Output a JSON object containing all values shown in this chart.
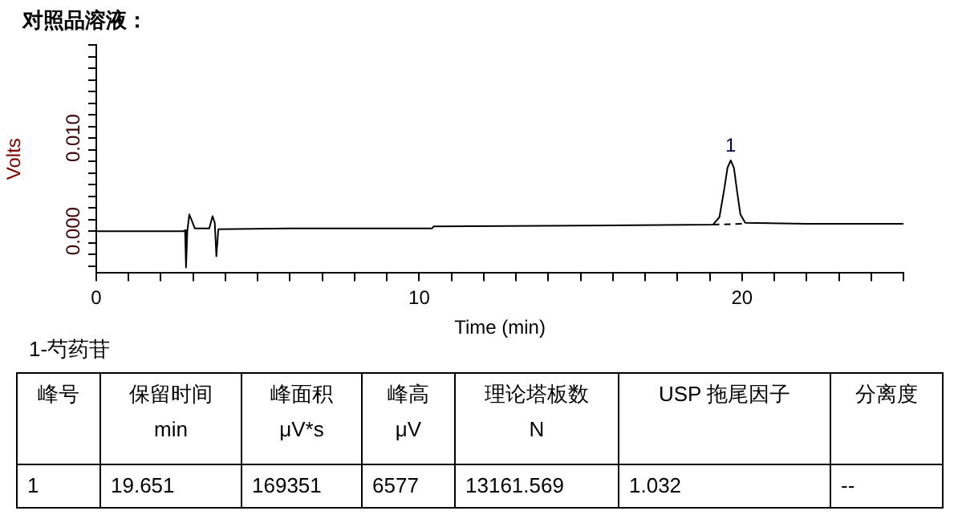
{
  "chart_data": {
    "type": "line",
    "title": "对照品溶液：",
    "xlabel": "Time (min)",
    "ylabel": "Volts",
    "xlim": [
      0,
      25
    ],
    "xticks": [
      {
        "value": 0,
        "label": "0"
      },
      {
        "value": 1,
        "label": null
      },
      {
        "value": 2,
        "label": null
      },
      {
        "value": 3,
        "label": null
      },
      {
        "value": 4,
        "label": null
      },
      {
        "value": 5,
        "label": null
      },
      {
        "value": 6,
        "label": null
      },
      {
        "value": 7,
        "label": null
      },
      {
        "value": 8,
        "label": null
      },
      {
        "value": 9,
        "label": null
      },
      {
        "value": 10,
        "label": "10"
      },
      {
        "value": 11,
        "label": null
      },
      {
        "value": 12,
        "label": null
      },
      {
        "value": 13,
        "label": null
      },
      {
        "value": 14,
        "label": null
      },
      {
        "value": 15,
        "label": null
      },
      {
        "value": 16,
        "label": null
      },
      {
        "value": 17,
        "label": null
      },
      {
        "value": 18,
        "label": null
      },
      {
        "value": 19,
        "label": null
      },
      {
        "value": 20,
        "label": "20"
      },
      {
        "value": 21,
        "label": null
      },
      {
        "value": 22,
        "label": null
      },
      {
        "value": 23,
        "label": null
      },
      {
        "value": 24,
        "label": null
      },
      {
        "value": 25,
        "label": null
      }
    ],
    "ylim": [
      -0.0045,
      0.02
    ],
    "yticks": [
      {
        "value": -0.00375,
        "label": null
      },
      {
        "value": -0.0025,
        "label": null
      },
      {
        "value": -0.00125,
        "label": null
      },
      {
        "value": 0,
        "label": "0.000"
      },
      {
        "value": 0.00125,
        "label": null
      },
      {
        "value": 0.0025,
        "label": null
      },
      {
        "value": 0.00375,
        "label": null
      },
      {
        "value": 0.005,
        "label": null
      },
      {
        "value": 0.00625,
        "label": null
      },
      {
        "value": 0.0075,
        "label": null
      },
      {
        "value": 0.00875,
        "label": null
      },
      {
        "value": 0.01,
        "label": "0.010"
      },
      {
        "value": 0.01125,
        "label": null
      },
      {
        "value": 0.0125,
        "label": null
      },
      {
        "value": 0.01375,
        "label": null
      },
      {
        "value": 0.015,
        "label": null
      },
      {
        "value": 0.01625,
        "label": null
      },
      {
        "value": 0.0175,
        "label": null
      },
      {
        "value": 0.01875,
        "label": null
      },
      {
        "value": 0.02,
        "label": null
      }
    ],
    "grid": false,
    "legend": false,
    "marker": "none",
    "series": [
      {
        "color": "#000000",
        "line_style": "solid",
        "x": [
          0,
          2.7,
          2.75,
          2.78,
          2.82,
          2.88,
          2.95,
          3.05,
          3.5,
          3.6,
          3.67,
          3.72,
          3.78,
          6,
          10.4,
          10.45,
          15,
          19.1,
          19.3,
          19.45,
          19.55,
          19.65,
          19.75,
          19.85,
          19.95,
          20.1,
          22,
          25
        ],
        "values": [
          0,
          0,
          0.0001,
          -0.0039,
          0,
          0.0018,
          0.0012,
          0.0003,
          0.0003,
          0.0016,
          0.0009,
          -0.0027,
          0.0002,
          0.0003,
          0.0003,
          0.0005,
          0.0006,
          0.0007,
          0.0015,
          0.0045,
          0.0068,
          0.0076,
          0.0068,
          0.0042,
          0.0018,
          0.0009,
          0.0008,
          0.0008
        ]
      },
      {
        "color": "#000000",
        "line_style": "dashed",
        "x": [
          19.1,
          20.1
        ],
        "values": [
          0.0007,
          0.0008
        ]
      }
    ],
    "annotations": [
      {
        "text": "1",
        "x": 19.65,
        "y": 0.0076
      },
      "1-芍药苷",
      "峰号",
      "保留时间\nmin",
      "峰面积\nμV*s",
      "峰高\nμV",
      "理论塔板数\nN",
      "USP 拖尾因子",
      "分离度",
      "1",
      "19.651",
      "169351",
      "6577",
      "13161.569",
      "1.032",
      "--"
    ]
  }
}
